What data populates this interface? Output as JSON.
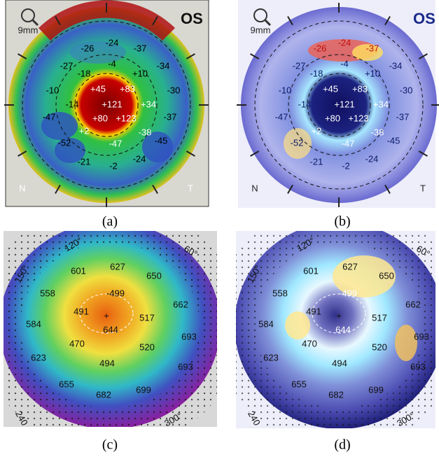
{
  "panels": [
    {
      "caption": "(a)",
      "badge": "OS",
      "scale": "9mm",
      "left": "N",
      "right": "T",
      "values": [
        "-26",
        "-24",
        "-37",
        "-27",
        "-18",
        "-4",
        "+10",
        "-34",
        "-10",
        "-14",
        "+45",
        "+83",
        "-30",
        "+121",
        "+34",
        "-47",
        "+80",
        "+123",
        "-37",
        "+2",
        "-38",
        "-52",
        "-47",
        "-45",
        "-21",
        "-2",
        "-24"
      ]
    },
    {
      "caption": "(b)",
      "badge": "OS",
      "scale": "9mm",
      "left": "N",
      "right": "T",
      "values": [
        "-26",
        "-24",
        "-37",
        "-27",
        "-18",
        "-4",
        "+10",
        "-34",
        "-10",
        "-14",
        "+45",
        "+83",
        "-30",
        "+121",
        "+34",
        "-47",
        "+80",
        "+123",
        "-37",
        "+2",
        "-38",
        "-52",
        "-47",
        "-45",
        "-21",
        "-2",
        "-24"
      ]
    },
    {
      "caption": "(c)",
      "angles": [
        "120°",
        "150°",
        "60°",
        "240",
        "300°"
      ],
      "values": [
        "601",
        "627",
        "650",
        "558",
        "662",
        "-499",
        "491",
        "517",
        "584",
        "644",
        "470",
        "520",
        "693",
        "623",
        "494",
        "693",
        "655",
        "682",
        "699"
      ]
    },
    {
      "caption": "(d)",
      "angles": [
        "120°",
        "150°",
        "60°",
        "240",
        "300°"
      ],
      "values": [
        "601",
        "627",
        "650",
        "558",
        "662",
        "-499",
        "491",
        "517",
        "584",
        "644",
        "470",
        "520",
        "693",
        "623",
        "494",
        "693",
        "655",
        "682",
        "699"
      ]
    }
  ]
}
